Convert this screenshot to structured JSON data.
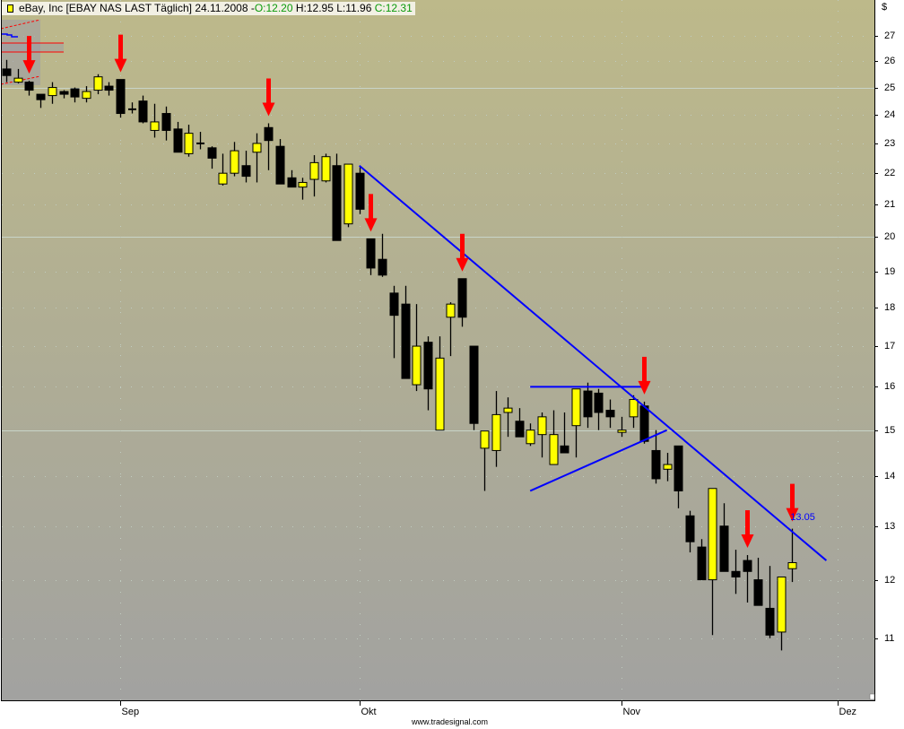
{
  "header": {
    "symbol_text": "eBay, Inc [EBAY NAS LAST Täglich] 24.11.2008 - ",
    "open": "O:12.20",
    "high_low": "H:12.95 L:11.96",
    "close": "C:12.31"
  },
  "currency_label": "$",
  "watermark": "www.tradesignal.com",
  "colors": {
    "up": "#ffff00",
    "down": "#000000",
    "trendline": "#0000ff",
    "arrow": "#ff0000",
    "bg_top": "#bdb98a",
    "bg_bottom": "#a2a2a0"
  },
  "chart_data": {
    "type": "candlestick",
    "title": "eBay, Inc [EBAY NAS LAST Täglich]",
    "y_scale": "log",
    "ylim": [
      10.3,
      28
    ],
    "y_ticks": [
      11,
      12,
      13,
      14,
      15,
      16,
      17,
      18,
      19,
      20,
      21,
      22,
      23,
      24,
      25,
      26,
      27
    ],
    "grid": true,
    "x_month_labels": [
      {
        "label": "Sep",
        "date": "2008-09-02"
      },
      {
        "label": "Okt",
        "date": "2008-10-01"
      },
      {
        "label": "Nov",
        "date": "2008-11-03"
      },
      {
        "label": "Dez",
        "date": "2008-12-01"
      }
    ],
    "dates": [
      "2008-08-18",
      "2008-08-19",
      "2008-08-20",
      "2008-08-21",
      "2008-08-22",
      "2008-08-25",
      "2008-08-26",
      "2008-08-27",
      "2008-08-28",
      "2008-08-29",
      "2008-09-02",
      "2008-09-03",
      "2008-09-04",
      "2008-09-05",
      "2008-09-08",
      "2008-09-09",
      "2008-09-10",
      "2008-09-11",
      "2008-09-12",
      "2008-09-15",
      "2008-09-16",
      "2008-09-17",
      "2008-09-18",
      "2008-09-19",
      "2008-09-22",
      "2008-09-23",
      "2008-09-24",
      "2008-09-25",
      "2008-09-26",
      "2008-09-29",
      "2008-09-30",
      "2008-10-01",
      "2008-10-02",
      "2008-10-03",
      "2008-10-06",
      "2008-10-07",
      "2008-10-08",
      "2008-10-09",
      "2008-10-10",
      "2008-10-13",
      "2008-10-14",
      "2008-10-15",
      "2008-10-16",
      "2008-10-17",
      "2008-10-20",
      "2008-10-21",
      "2008-10-22",
      "2008-10-23",
      "2008-10-24",
      "2008-10-27",
      "2008-10-28",
      "2008-10-29",
      "2008-10-30",
      "2008-10-31",
      "2008-11-03",
      "2008-11-04",
      "2008-11-05",
      "2008-11-06",
      "2008-11-07",
      "2008-11-10",
      "2008-11-11",
      "2008-11-12",
      "2008-11-13",
      "2008-11-14",
      "2008-11-17",
      "2008-11-18",
      "2008-11-19",
      "2008-11-20",
      "2008-11-21",
      "2008-11-24"
    ],
    "ohlc": [
      [
        25.7,
        26.05,
        25.2,
        25.45
      ],
      [
        25.2,
        25.7,
        25.15,
        25.35
      ],
      [
        25.2,
        25.25,
        24.7,
        24.9
      ],
      [
        24.75,
        24.75,
        24.25,
        24.55
      ],
      [
        24.7,
        25.2,
        24.4,
        25.0
      ],
      [
        24.85,
        24.9,
        24.6,
        24.75
      ],
      [
        24.95,
        25.0,
        24.45,
        24.65
      ],
      [
        24.6,
        25.05,
        24.45,
        24.85
      ],
      [
        24.9,
        25.5,
        24.75,
        25.4
      ],
      [
        25.05,
        25.2,
        24.7,
        24.9
      ],
      [
        25.3,
        25.3,
        23.9,
        24.05
      ],
      [
        24.2,
        24.45,
        24.05,
        24.2
      ],
      [
        24.5,
        24.7,
        23.7,
        23.75
      ],
      [
        23.45,
        24.4,
        23.2,
        23.75
      ],
      [
        24.05,
        24.3,
        23.1,
        23.45
      ],
      [
        23.5,
        23.75,
        22.7,
        22.7
      ],
      [
        22.65,
        23.65,
        22.55,
        23.35
      ],
      [
        23.0,
        23.4,
        22.8,
        23.0
      ],
      [
        22.85,
        22.9,
        22.15,
        22.5
      ],
      [
        21.65,
        22.65,
        21.6,
        22.0
      ],
      [
        22.0,
        23.05,
        21.9,
        22.75
      ],
      [
        22.25,
        22.75,
        21.7,
        21.9
      ],
      [
        22.7,
        23.35,
        21.7,
        23.0
      ],
      [
        23.55,
        23.7,
        22.1,
        23.1
      ],
      [
        22.9,
        23.15,
        21.65,
        21.65
      ],
      [
        21.85,
        22.1,
        21.55,
        21.55
      ],
      [
        21.55,
        21.85,
        21.15,
        21.7
      ],
      [
        21.8,
        22.6,
        21.25,
        22.35
      ],
      [
        21.75,
        22.65,
        21.7,
        22.55
      ],
      [
        22.25,
        22.65,
        19.9,
        19.9
      ],
      [
        20.4,
        22.3,
        20.3,
        22.3
      ],
      [
        22.0,
        22.2,
        20.7,
        20.85
      ],
      [
        19.95,
        19.95,
        18.9,
        19.1
      ],
      [
        19.35,
        20.1,
        18.85,
        18.9
      ],
      [
        18.4,
        18.6,
        16.7,
        17.8
      ],
      [
        18.1,
        18.6,
        16.2,
        16.2
      ],
      [
        16.05,
        18.1,
        15.9,
        17.0
      ],
      [
        17.1,
        17.25,
        15.45,
        15.95
      ],
      [
        15.0,
        17.25,
        15.0,
        16.7
      ],
      [
        17.75,
        18.15,
        16.75,
        18.1
      ],
      [
        18.8,
        18.8,
        17.5,
        17.75
      ],
      [
        17.0,
        17.0,
        15.0,
        15.15
      ],
      [
        14.6,
        14.98,
        13.7,
        14.98
      ],
      [
        14.55,
        15.9,
        14.2,
        15.35
      ],
      [
        15.4,
        15.75,
        14.85,
        15.5
      ],
      [
        15.2,
        15.5,
        14.85,
        14.85
      ],
      [
        14.7,
        15.15,
        14.65,
        15.0
      ],
      [
        14.9,
        15.4,
        14.4,
        15.3
      ],
      [
        14.25,
        15.45,
        14.25,
        14.9
      ],
      [
        14.65,
        15.4,
        14.5,
        14.5
      ],
      [
        15.1,
        15.95,
        14.4,
        15.95
      ],
      [
        15.9,
        16.1,
        15.05,
        15.3
      ],
      [
        15.85,
        15.95,
        15.0,
        15.4
      ],
      [
        15.45,
        15.7,
        15.05,
        15.3
      ],
      [
        14.95,
        15.3,
        14.85,
        15.0
      ],
      [
        15.3,
        15.8,
        15.05,
        15.7
      ],
      [
        15.55,
        15.65,
        14.7,
        14.75
      ],
      [
        14.55,
        15.0,
        13.85,
        13.95
      ],
      [
        14.15,
        14.5,
        13.9,
        14.25
      ],
      [
        14.65,
        14.65,
        13.35,
        13.7
      ],
      [
        13.2,
        13.3,
        12.5,
        12.7
      ],
      [
        12.6,
        12.75,
        12.0,
        12.0
      ],
      [
        12.0,
        13.75,
        11.05,
        13.75
      ],
      [
        13.0,
        13.45,
        12.15,
        12.15
      ],
      [
        12.15,
        12.55,
        11.75,
        12.05
      ],
      [
        12.35,
        12.45,
        11.6,
        12.15
      ],
      [
        12.0,
        12.4,
        11.55,
        11.55
      ],
      [
        11.5,
        12.25,
        11.0,
        11.05
      ],
      [
        11.1,
        12.05,
        10.8,
        12.05
      ],
      [
        12.2,
        12.95,
        11.96,
        12.31
      ]
    ],
    "arrow_dates": [
      "2008-08-20",
      "2008-09-02",
      "2008-09-19",
      "2008-10-02",
      "2008-10-14",
      "2008-11-05",
      "2008-11-18",
      "2008-11-24"
    ],
    "trendlines": [
      {
        "name": "falling-resistance",
        "from": {
          "date": "2008-10-01",
          "price": 22.25
        },
        "to": {
          "date": "2008-11-28",
          "price": 12.35
        }
      },
      {
        "name": "horizontal-resistance",
        "from": {
          "date": "2008-10-22",
          "price": 16.0
        },
        "to": {
          "date": "2008-11-05",
          "price": 16.0
        }
      },
      {
        "name": "rising-support",
        "from": {
          "date": "2008-10-22",
          "price": 13.7
        },
        "to": {
          "date": "2008-11-07",
          "price": 15.0
        }
      }
    ],
    "annotations": [
      {
        "text": "13.05",
        "date": "2008-11-24",
        "price": 13.05
      }
    ]
  }
}
